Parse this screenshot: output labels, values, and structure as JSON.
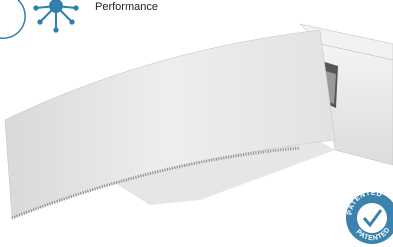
{
  "header": {
    "label": "Performance"
  },
  "badge": {
    "text": "PATENTED"
  }
}
